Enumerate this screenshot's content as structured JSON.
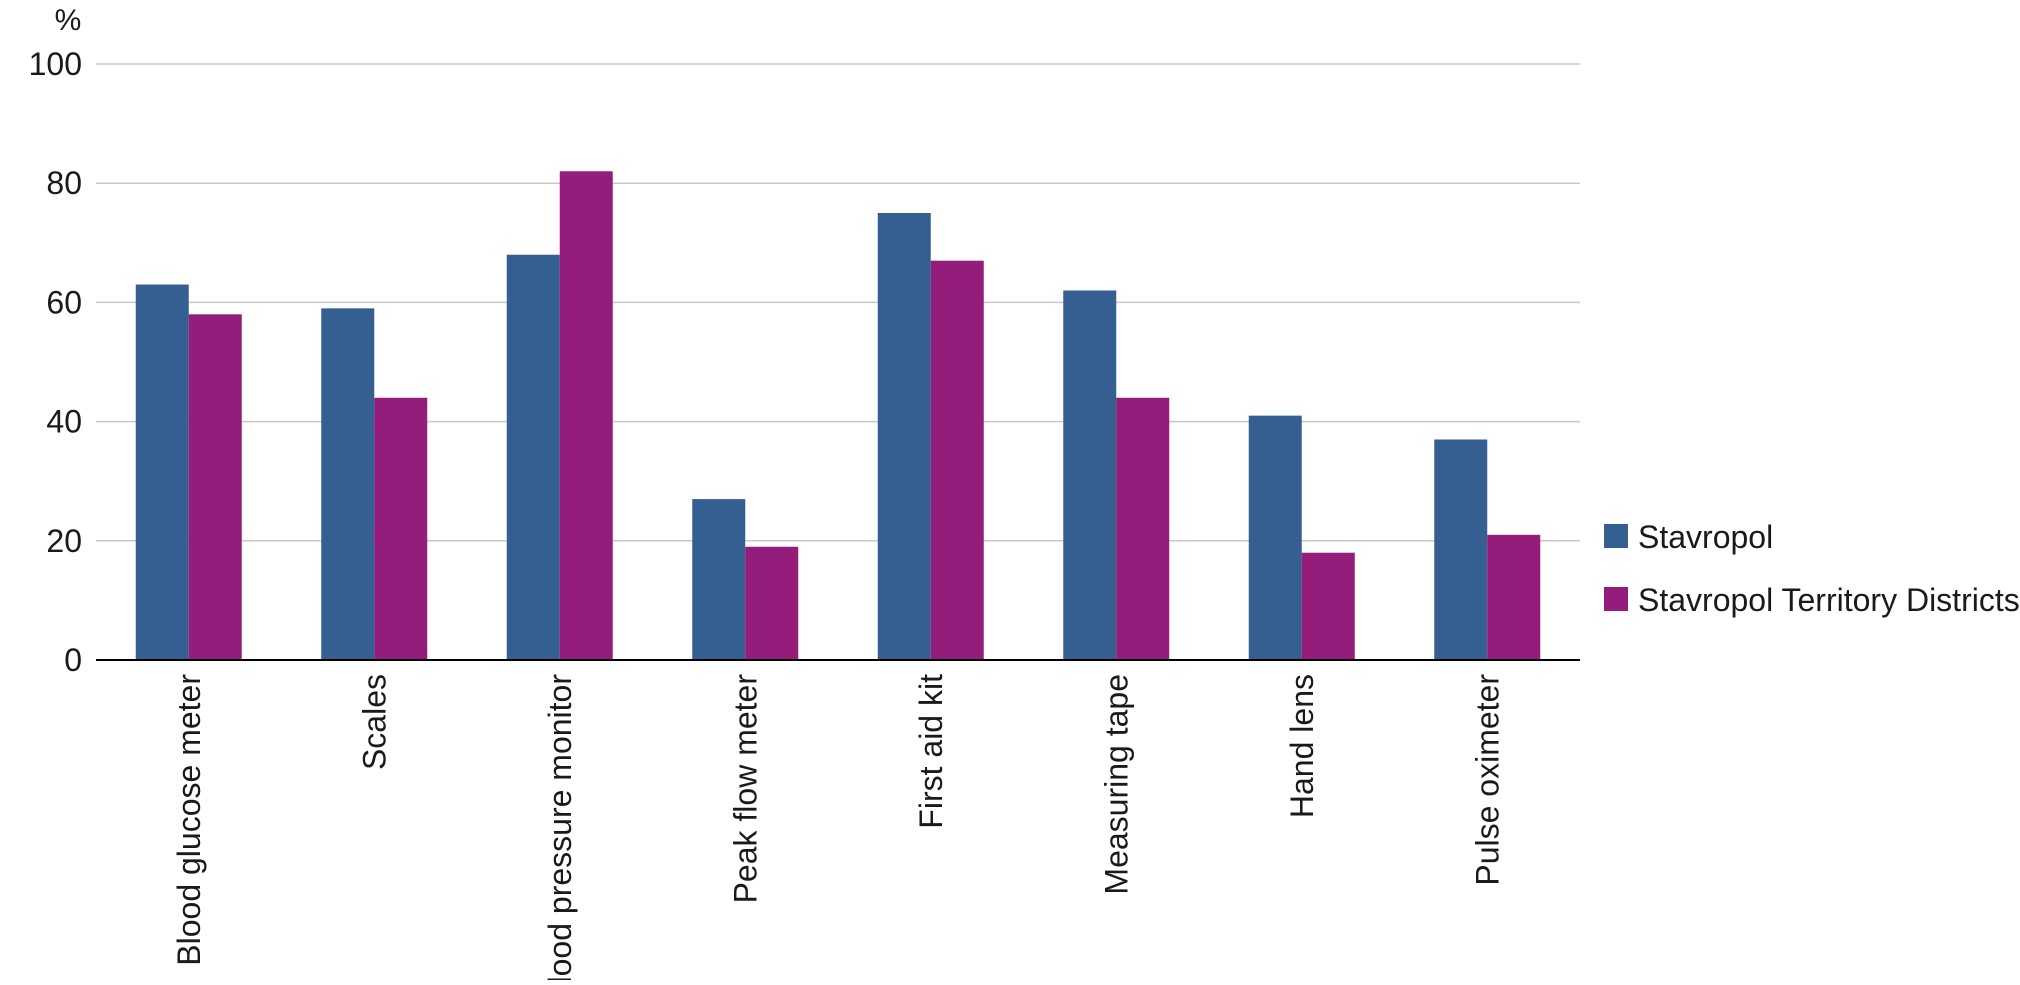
{
  "chart_data": {
    "type": "bar",
    "title": "",
    "xlabel": "",
    "ylabel": "%",
    "ylim": [
      0,
      100
    ],
    "yticks": [
      0,
      20,
      40,
      60,
      80,
      100
    ],
    "grid": true,
    "legend_position": "right",
    "categories": [
      "Blood glucose meter",
      "Scales",
      "Blood pressure monitor",
      "Peak flow meter",
      "First aid kit",
      "Measuring tape",
      "Hand lens",
      "Pulse oximeter"
    ],
    "series": [
      {
        "name": "Stavropol",
        "color": "#365f91",
        "values": [
          63,
          59,
          68,
          27,
          75,
          62,
          41,
          37
        ]
      },
      {
        "name": "Stavropol Territory Districts",
        "color": "#941c7b",
        "values": [
          58,
          44,
          82,
          19,
          67,
          44,
          18,
          21
        ]
      }
    ]
  }
}
